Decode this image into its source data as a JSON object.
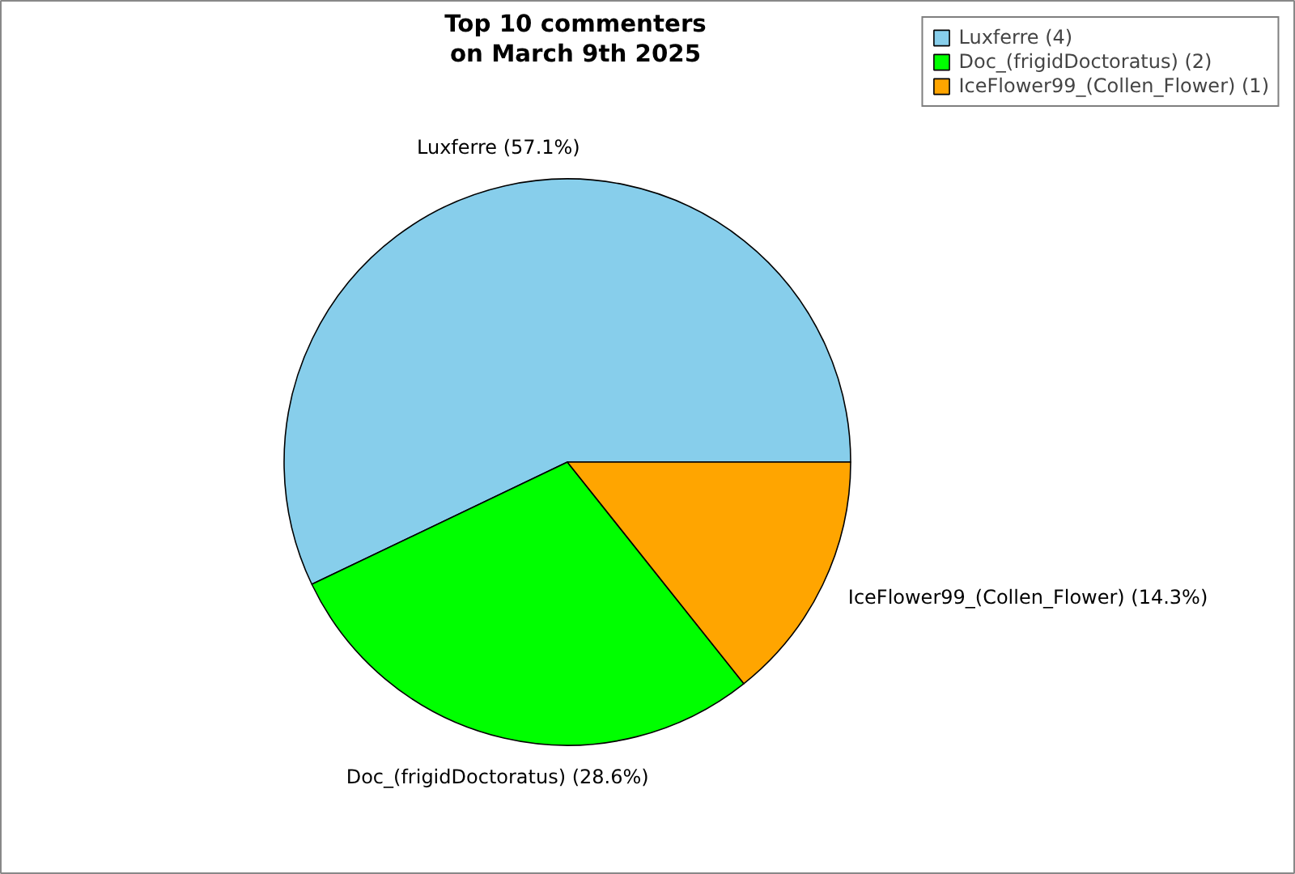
{
  "chart_data": {
    "type": "pie",
    "title": "Top 10 commenters\non March 9th 2025",
    "categories": [
      "Luxferre (4)",
      "Doc_(frigidDoctoratus) (2)",
      "IceFlower99_(Collen_Flower) (1)"
    ],
    "values": [
      57.1,
      28.6,
      14.3
    ],
    "value_labels": [
      "Luxferre (57.1%)",
      "Doc_(frigidDoctoratus) (28.6%)",
      "IceFlower99_(Collen_Flower) (14.3%)"
    ],
    "colors": [
      "#87ceeb",
      "#00ff00",
      "#ffa500"
    ],
    "legend": "top right"
  }
}
